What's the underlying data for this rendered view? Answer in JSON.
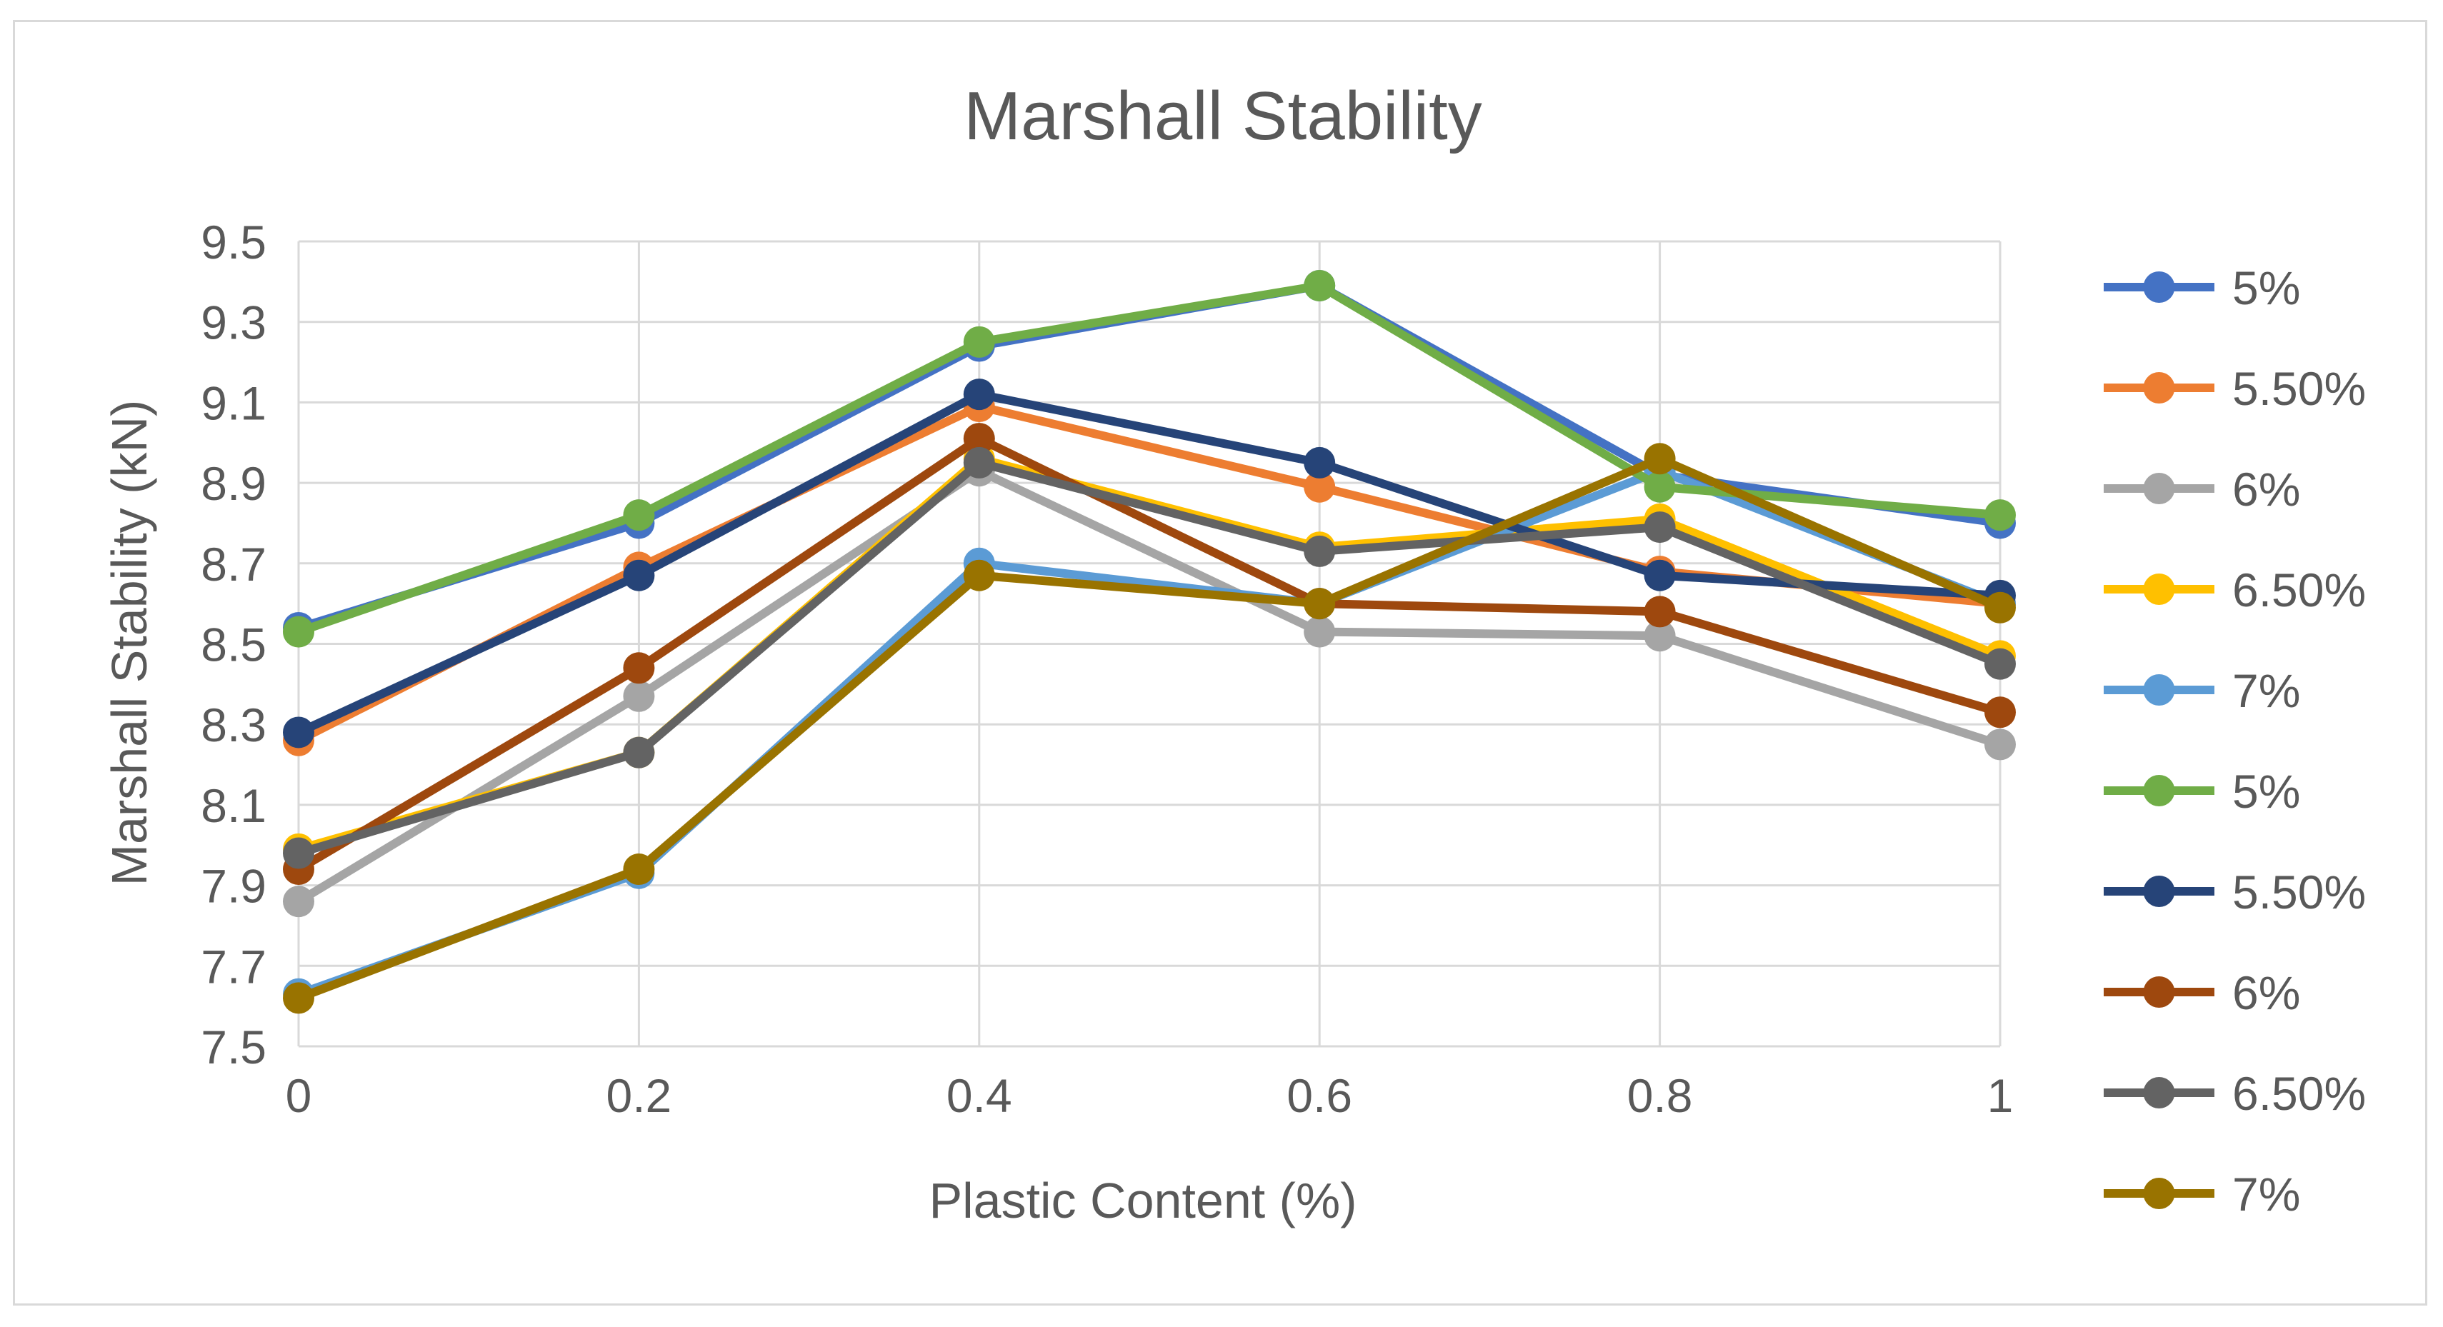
{
  "chart_data": {
    "type": "line",
    "title": "Marshall Stability",
    "xlabel": "Plastic Content (%)",
    "ylabel": "Marshall Stability (kN)",
    "x": [
      0,
      0.2,
      0.4,
      0.6,
      0.8,
      1
    ],
    "x_tick_labels": [
      "0",
      "0.2",
      "0.4",
      "0.6",
      "0.8",
      "1"
    ],
    "y_tick_labels": [
      "7.5",
      "7.7",
      "7.9",
      "8.1",
      "8.3",
      "8.5",
      "8.7",
      "8.9",
      "9.1",
      "9.3",
      "9.5"
    ],
    "ylim": [
      7.5,
      9.5
    ],
    "xlim": [
      0,
      1
    ],
    "grid": true,
    "legend_position": "right",
    "series": [
      {
        "name": "5%",
        "color": "#4472C4",
        "values": [
          8.54,
          8.8,
          9.24,
          9.39,
          8.92,
          8.8
        ]
      },
      {
        "name": "5.50%",
        "color": "#ED7D31",
        "values": [
          8.26,
          8.69,
          9.09,
          8.89,
          8.68,
          8.6
        ]
      },
      {
        "name": "6%",
        "color": "#A5A5A5",
        "values": [
          7.86,
          8.37,
          8.93,
          8.53,
          8.52,
          8.25
        ]
      },
      {
        "name": "6.50%",
        "color": "#FFC000",
        "values": [
          7.99,
          8.23,
          8.96,
          8.74,
          8.81,
          8.47
        ]
      },
      {
        "name": "7%",
        "color": "#5B9BD5",
        "values": [
          7.63,
          7.93,
          8.7,
          8.6,
          8.93,
          8.6
        ]
      },
      {
        "name": "5%",
        "color": "#70AD47",
        "values": [
          8.53,
          8.82,
          9.25,
          9.39,
          8.89,
          8.82
        ]
      },
      {
        "name": "5.50%",
        "color": "#264478",
        "values": [
          8.28,
          8.67,
          9.12,
          8.95,
          8.67,
          8.62
        ]
      },
      {
        "name": "6%",
        "color": "#9E480E",
        "values": [
          7.94,
          8.44,
          9.01,
          8.6,
          8.58,
          8.33
        ]
      },
      {
        "name": "6.50%",
        "color": "#636363",
        "values": [
          7.98,
          8.23,
          8.95,
          8.73,
          8.79,
          8.45
        ]
      },
      {
        "name": "7%",
        "color": "#997300",
        "values": [
          7.62,
          7.94,
          8.67,
          8.6,
          8.96,
          8.59
        ]
      }
    ]
  }
}
